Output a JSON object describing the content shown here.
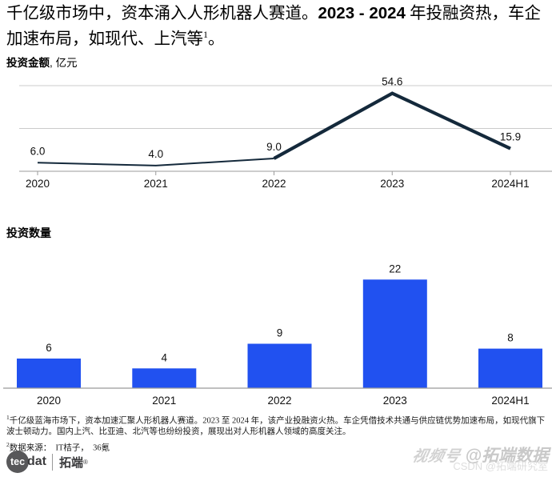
{
  "title": {
    "part1": "千亿级市场中，资本涌入人形机器人赛道。",
    "bold": "2023 - 2024",
    "part2": " 年投融资热，车企",
    "line2": "加速布局，如现代、上汽等",
    "superscript": "1",
    "period": "。"
  },
  "sections": {
    "amount_heading_bold": "投资金额",
    "amount_heading_rest": ", 亿元",
    "count_heading": "投资数量"
  },
  "chart_data": [
    {
      "type": "line",
      "title": "投资金额, 亿元",
      "categories": [
        "2020",
        "2021",
        "2022",
        "2023",
        "2024H1"
      ],
      "values": [
        6.0,
        4.0,
        9.0,
        54.6,
        15.9
      ],
      "value_labels": [
        "6.0",
        "4.0",
        "9.0",
        "54.6",
        "15.9"
      ],
      "ylabel": "亿元",
      "ylim": [
        0,
        66
      ],
      "gridlines": [
        30,
        60
      ],
      "grid": "horizontal",
      "legend": "none",
      "line_color": "#14293B",
      "emphasis_from_index": 2
    },
    {
      "type": "bar",
      "title": "投资数量",
      "categories": [
        "2020",
        "2021",
        "2022",
        "2023",
        "2024H1"
      ],
      "values": [
        6,
        4,
        9,
        22,
        8
      ],
      "value_labels": [
        "6",
        "4",
        "9",
        "22",
        "8"
      ],
      "ylim": [
        0,
        23
      ],
      "grid": "off",
      "legend": "none",
      "bar_color": "#2151F0"
    }
  ],
  "footnotes": {
    "note1_sup": "1",
    "note1": "千亿级蓝海市场下，资本加速汇聚人形机器人赛道。2023 至 2024 年，该产业投融资火热。车企凭借技术共通与供应链优势加速布局，如现代旗下波士顿动力。国内上汽、比亚迪、北汽等也纷纷投资，展现出对人形机器人领域的高度关注。",
    "note2_sup": "2",
    "note2": "数据来源：　IT桔子，　36氪"
  },
  "logo": {
    "circle_text": "tec",
    "suffix": "dat",
    "brand": "拓端",
    "reg": "®"
  },
  "watermark": {
    "line1_prefix": "视频号",
    "line1_text": "@拓端数据",
    "line2_text": "CSDN @拓端研究室"
  },
  "colors": {
    "line_navy": "#14293B",
    "bar_blue": "#2151F0",
    "gridline_gray": "#CBCBCB",
    "axis_gray": "#9B9B9B"
  }
}
